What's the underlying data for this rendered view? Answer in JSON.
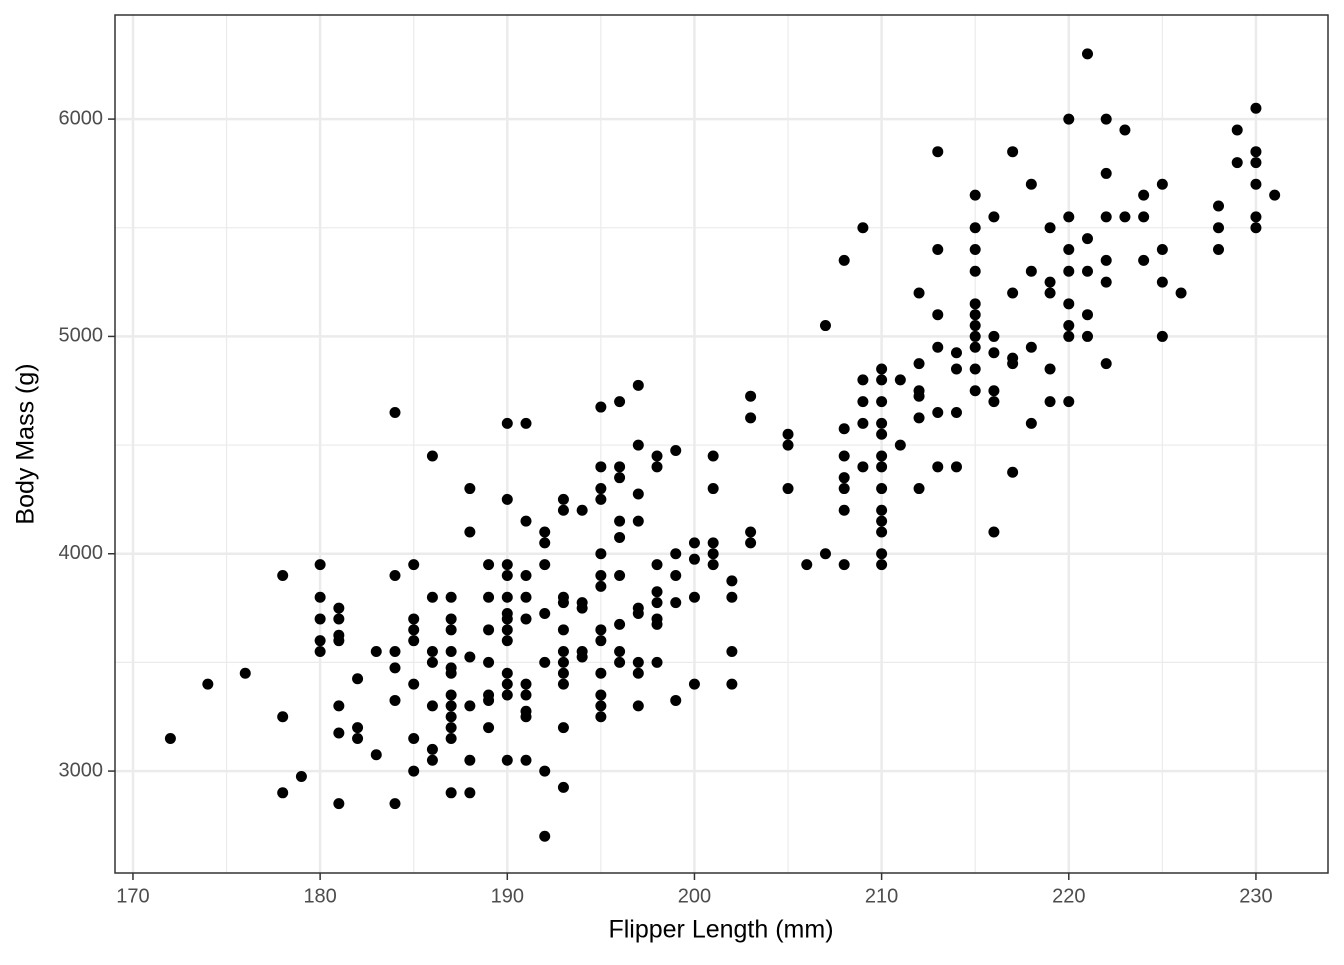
{
  "chart_data": {
    "type": "scatter",
    "x_label": "Flipper Length (mm)",
    "y_label": "Body Mass (g)",
    "xlim": [
      169.04,
      233.85
    ],
    "ylim": [
      2531,
      6479
    ],
    "xticks": [
      170,
      180,
      190,
      200,
      210,
      220,
      230
    ],
    "yticks": [
      3000,
      4000,
      5000,
      6000
    ],
    "x_minor_grid": [
      175,
      185,
      195,
      205,
      215,
      225
    ],
    "y_minor_grid": [
      3500,
      4500,
      5500
    ],
    "grid": true,
    "color": "#000000",
    "x": [
      172,
      174,
      176,
      178,
      178,
      178,
      179,
      180,
      180,
      180,
      180,
      180,
      181,
      181,
      181,
      181,
      181,
      181,
      181,
      182,
      182,
      182,
      183,
      183,
      184,
      184,
      184,
      184,
      184,
      184,
      185,
      185,
      185,
      185,
      185,
      185,
      185,
      186,
      186,
      186,
      186,
      186,
      186,
      186,
      187,
      187,
      187,
      187,
      187,
      187,
      187,
      187,
      187,
      187,
      187,
      187,
      188,
      188,
      188,
      188,
      188,
      188,
      189,
      189,
      189,
      189,
      189,
      189,
      189,
      190,
      190,
      190,
      190,
      190,
      190,
      190,
      190,
      190,
      190,
      190,
      190,
      190,
      191,
      191,
      191,
      191,
      191,
      191,
      191,
      191,
      191,
      191,
      192,
      192,
      192,
      192,
      192,
      192,
      192,
      193,
      193,
      193,
      193,
      193,
      193,
      193,
      193,
      193,
      193,
      193,
      194,
      194,
      194,
      194,
      194,
      195,
      195,
      195,
      195,
      195,
      195,
      195,
      195,
      195,
      195,
      195,
      195,
      195,
      196,
      196,
      196,
      196,
      196,
      196,
      196,
      196,
      196,
      197,
      197,
      197,
      197,
      197,
      197,
      197,
      197,
      197,
      198,
      198,
      198,
      198,
      198,
      198,
      198,
      198,
      199,
      199,
      199,
      199,
      199,
      200,
      200,
      200,
      200,
      201,
      201,
      201,
      201,
      201,
      202,
      202,
      202,
      202,
      203,
      203,
      203,
      203,
      205,
      205,
      205,
      206,
      207,
      207,
      208,
      208,
      208,
      208,
      208,
      208,
      208,
      209,
      209,
      209,
      209,
      209,
      210,
      210,
      210,
      210,
      210,
      210,
      210,
      210,
      210,
      210,
      210,
      210,
      210,
      211,
      211,
      212,
      212,
      212,
      212,
      212,
      212,
      213,
      213,
      213,
      213,
      213,
      213,
      214,
      214,
      214,
      214,
      215,
      215,
      215,
      215,
      215,
      215,
      215,
      215,
      215,
      215,
      215,
      216,
      216,
      216,
      216,
      216,
      216,
      217,
      217,
      217,
      217,
      217,
      218,
      218,
      218,
      218,
      219,
      219,
      219,
      219,
      219,
      220,
      220,
      220,
      220,
      220,
      220,
      220,
      220,
      221,
      221,
      221,
      221,
      221,
      222,
      222,
      222,
      222,
      222,
      222,
      223,
      223,
      224,
      224,
      224,
      225,
      225,
      225,
      225,
      226,
      228,
      228,
      228,
      229,
      229,
      230,
      230,
      230,
      230,
      230,
      230,
      231
    ],
    "values": [
      3150,
      3400,
      3450,
      3900,
      3250,
      2900,
      2975,
      3950,
      3800,
      3700,
      3600,
      3550,
      3750,
      3700,
      3625,
      3600,
      3300,
      3175,
      2850,
      3425,
      3200,
      3150,
      3550,
      3075,
      4650,
      3900,
      3550,
      3475,
      3325,
      2850,
      3950,
      3700,
      3650,
      3600,
      3400,
      3150,
      3000,
      4450,
      3800,
      3550,
      3500,
      3300,
      3100,
      3050,
      3800,
      3700,
      3650,
      3550,
      3475,
      3450,
      3350,
      3300,
      3250,
      3200,
      3150,
      2900,
      4300,
      4100,
      3525,
      3300,
      3050,
      2900,
      3950,
      3800,
      3650,
      3500,
      3350,
      3325,
      3200,
      4600,
      4250,
      3950,
      3900,
      3800,
      3725,
      3700,
      3650,
      3600,
      3450,
      3400,
      3350,
      3050,
      4600,
      4150,
      3900,
      3800,
      3700,
      3400,
      3350,
      3275,
      3250,
      3050,
      4100,
      4050,
      3950,
      3725,
      3500,
      3000,
      2700,
      4250,
      4200,
      3800,
      3775,
      3650,
      3550,
      3500,
      3450,
      3400,
      3200,
      2925,
      4200,
      3775,
      3750,
      3550,
      3525,
      4675,
      4400,
      4300,
      4250,
      4000,
      3900,
      3850,
      3650,
      3600,
      3450,
      3350,
      3300,
      3250,
      4700,
      4400,
      4350,
      4150,
      4075,
      3900,
      3675,
      3550,
      3500,
      4775,
      4500,
      4275,
      4150,
      3750,
      3725,
      3500,
      3450,
      3300,
      4450,
      4400,
      3950,
      3825,
      3775,
      3700,
      3675,
      3500,
      4475,
      4000,
      3900,
      3775,
      3325,
      4050,
      3975,
      3800,
      3400,
      4450,
      4300,
      4050,
      4000,
      3950,
      3875,
      3800,
      3550,
      3400,
      4725,
      4625,
      4100,
      4050,
      4550,
      4500,
      4300,
      3950,
      5050,
      4000,
      5350,
      4575,
      4450,
      4350,
      4300,
      4200,
      3950,
      5500,
      4800,
      4700,
      4600,
      4400,
      4850,
      4800,
      4700,
      4600,
      4550,
      4450,
      4400,
      4300,
      4200,
      4150,
      4100,
      4000,
      3950,
      4800,
      4500,
      5200,
      4875,
      4750,
      4725,
      4625,
      4300,
      5850,
      5400,
      5100,
      4950,
      4650,
      4400,
      4925,
      4850,
      4650,
      4400,
      5650,
      5500,
      5400,
      5300,
      5150,
      5100,
      5050,
      5000,
      4950,
      4850,
      4750,
      5550,
      5000,
      4925,
      4750,
      4700,
      4100,
      5850,
      5200,
      4900,
      4875,
      4375,
      5700,
      5300,
      4950,
      4600,
      5500,
      5250,
      5200,
      4850,
      4700,
      6000,
      5550,
      5400,
      5300,
      5150,
      5050,
      5000,
      4700,
      6300,
      5450,
      5300,
      5100,
      5000,
      6000,
      5750,
      5550,
      5350,
      5250,
      4875,
      5950,
      5550,
      5650,
      5550,
      5350,
      5700,
      5400,
      5250,
      5000,
      5200,
      5600,
      5500,
      5400,
      5950,
      5800,
      6050,
      5850,
      5800,
      5700,
      5550,
      5500,
      5650
    ]
  }
}
